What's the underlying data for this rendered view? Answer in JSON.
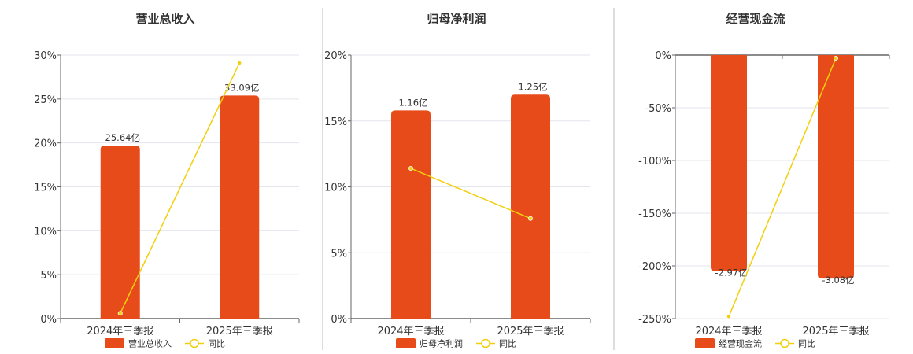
{
  "colors": {
    "bar": "#e84b1a",
    "line": "#f2cf0d",
    "grid": "#e3e6ee",
    "axis": "#666666",
    "divider": "#bbbbbb"
  },
  "chart_data": [
    {
      "type": "bar",
      "title": "营业总收入",
      "categories": [
        "2024年三季报",
        "2025年三季报"
      ],
      "ylim": [
        0,
        30
      ],
      "ytick_values": [
        0,
        5,
        10,
        15,
        20,
        25,
        30
      ],
      "ytick_labels": [
        "0%",
        "5%",
        "10%",
        "15%",
        "20%",
        "25%",
        "30%"
      ],
      "grid": true,
      "legend_position": "bottom",
      "series": [
        {
          "name": "营业总收入",
          "kind": "bar",
          "values": [
            19.7,
            25.4
          ],
          "data_labels": [
            "25.64亿",
            "33.09亿"
          ]
        },
        {
          "name": "同比",
          "kind": "line",
          "values": [
            0.6,
            29.1
          ]
        }
      ]
    },
    {
      "type": "bar",
      "title": "归母净利润",
      "categories": [
        "2024年三季报",
        "2025年三季报"
      ],
      "ylim": [
        0,
        20
      ],
      "ytick_values": [
        0,
        5,
        10,
        15,
        20
      ],
      "ytick_labels": [
        "0%",
        "5%",
        "10%",
        "15%",
        "20%"
      ],
      "grid": true,
      "legend_position": "bottom",
      "series": [
        {
          "name": "归母净利润",
          "kind": "bar",
          "values": [
            15.8,
            17.0
          ],
          "data_labels": [
            "1.16亿",
            "1.25亿"
          ]
        },
        {
          "name": "同比",
          "kind": "line",
          "values": [
            11.4,
            7.6
          ]
        }
      ]
    },
    {
      "type": "bar",
      "title": "经营现金流",
      "categories": [
        "2024年三季报",
        "2025年三季报"
      ],
      "ylim": [
        -250,
        0
      ],
      "ytick_values": [
        0,
        -50,
        -100,
        -150,
        -200,
        -250
      ],
      "ytick_labels": [
        "0%",
        "-50%",
        "-100%",
        "-150%",
        "-200%",
        "-250%"
      ],
      "grid": true,
      "legend_position": "bottom",
      "series": [
        {
          "name": "经营现金流",
          "kind": "bar",
          "values": [
            -205,
            -212
          ],
          "data_labels": [
            "-2.97亿",
            "-3.08亿"
          ]
        },
        {
          "name": "同比",
          "kind": "line",
          "values": [
            -248,
            -3
          ]
        }
      ]
    }
  ]
}
